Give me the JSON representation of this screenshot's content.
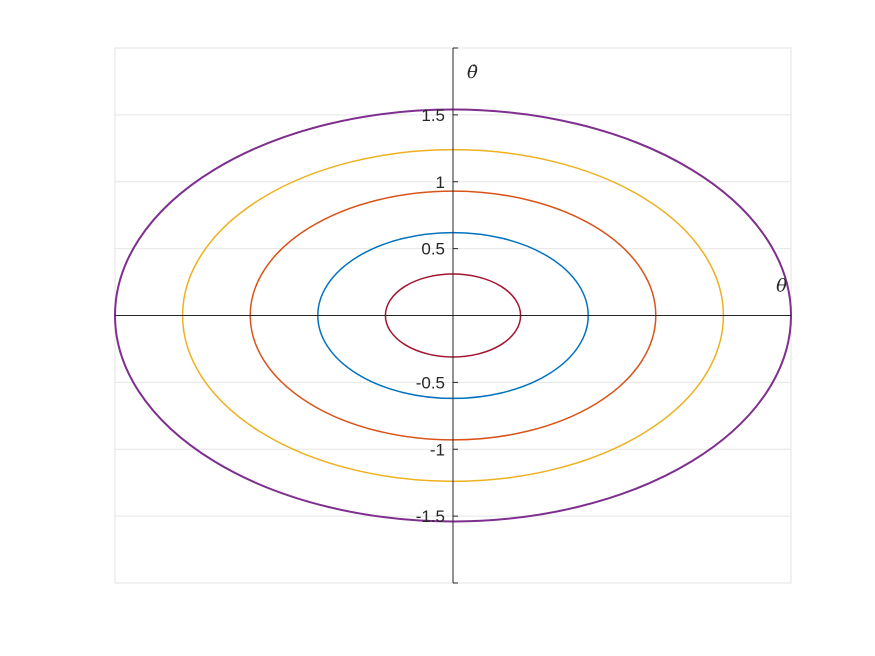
{
  "chart_data": {
    "type": "line",
    "title": "",
    "xlabel": "θ",
    "ylabel": "θ̇",
    "xlim": [
      -2.5,
      2.5
    ],
    "ylim": [
      -2,
      2
    ],
    "grid": true,
    "axes_through_origin": true,
    "y_ticks": [
      {
        "value": 1.5,
        "label": "1.5"
      },
      {
        "value": 1,
        "label": "1"
      },
      {
        "value": 0.5,
        "label": "0.5"
      },
      {
        "value": -0.5,
        "label": "-0.5"
      },
      {
        "value": -1,
        "label": "-1"
      },
      {
        "value": -1.5,
        "label": "-1.5"
      }
    ],
    "series": [
      {
        "shape": "ellipse",
        "x_semi_axis": 0.5,
        "y_semi_axis": 0.31,
        "color": "#A2142F"
      },
      {
        "shape": "ellipse",
        "x_semi_axis": 1.0,
        "y_semi_axis": 0.62,
        "color": "#0072BD"
      },
      {
        "shape": "ellipse",
        "x_semi_axis": 1.5,
        "y_semi_axis": 0.93,
        "color": "#D95319"
      },
      {
        "shape": "ellipse",
        "x_semi_axis": 2.0,
        "y_semi_axis": 1.24,
        "color": "#EDB120"
      },
      {
        "shape": "ellipse",
        "x_semi_axis": 2.5,
        "y_semi_axis": 1.54,
        "color": "#7E2F8E"
      }
    ]
  },
  "colors": {
    "grid": "#e6e6e6",
    "box": "#e3e3e3",
    "axis": "#262626"
  }
}
